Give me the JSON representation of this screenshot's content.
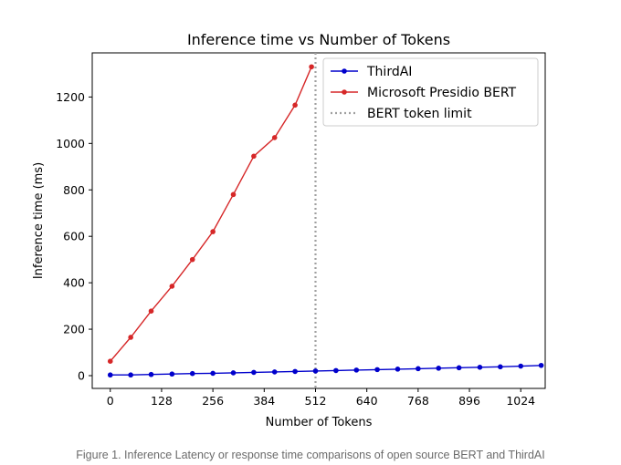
{
  "chart_data": {
    "type": "line",
    "title": "Inference time vs Number of Tokens",
    "xlabel": "Number of Tokens",
    "ylabel": "Inference time (ms)",
    "xlim": [
      -45,
      1085
    ],
    "ylim": [
      -55,
      1390
    ],
    "x_ticks": [
      0,
      128,
      256,
      384,
      512,
      640,
      768,
      896,
      1024
    ],
    "y_ticks": [
      0,
      200,
      400,
      600,
      800,
      1000,
      1200
    ],
    "grid": false,
    "legend_position": "top-right",
    "series": [
      {
        "name": "ThirdAI",
        "color": "#0000cc",
        "marker": "circle",
        "points": [
          [
            0,
            3
          ],
          [
            51,
            3
          ],
          [
            102,
            5
          ],
          [
            154,
            7
          ],
          [
            205,
            9
          ],
          [
            256,
            10
          ],
          [
            307,
            12
          ],
          [
            358,
            14
          ],
          [
            410,
            16
          ],
          [
            461,
            18
          ],
          [
            512,
            20
          ],
          [
            563,
            22
          ],
          [
            614,
            24
          ],
          [
            666,
            26
          ],
          [
            717,
            28
          ],
          [
            768,
            30
          ],
          [
            819,
            32
          ],
          [
            870,
            34
          ],
          [
            922,
            36
          ],
          [
            973,
            38
          ],
          [
            1024,
            41
          ],
          [
            1075,
            44
          ]
        ]
      },
      {
        "name": "Microsoft Presidio BERT",
        "color": "#d62728",
        "marker": "circle",
        "points": [
          [
            0,
            62
          ],
          [
            51,
            165
          ],
          [
            102,
            278
          ],
          [
            154,
            385
          ],
          [
            205,
            500
          ],
          [
            256,
            620
          ],
          [
            307,
            780
          ],
          [
            358,
            945
          ],
          [
            410,
            1025
          ],
          [
            461,
            1165
          ],
          [
            502,
            1330
          ]
        ]
      }
    ],
    "reference_lines": [
      {
        "name": "BERT token limit",
        "x": 512,
        "color": "#a0a0a0",
        "style": "dotted"
      }
    ]
  },
  "caption": "Figure 1. Inference Latency or response time comparisons of open source BERT and ThirdAI"
}
